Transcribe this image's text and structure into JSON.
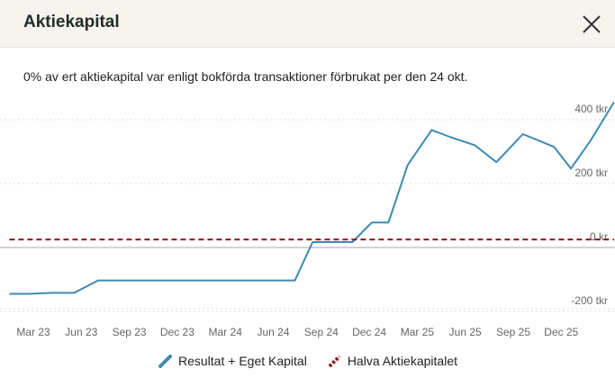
{
  "dialog": {
    "title": "Aktiekapital",
    "description": "0% av ert aktiekapital var enligt bokförda transaktioner förbrukat per den 24 okt."
  },
  "colors": {
    "series_line": "#3e8ab3",
    "reference_line": "#8b1a1a",
    "grid": "#dddddd",
    "zero_axis": "#aaaaaa",
    "header_bg": "#f7f4ef"
  },
  "icons": {
    "close": "close-icon"
  },
  "chart_data": {
    "type": "line",
    "title": "",
    "xlabel": "",
    "ylabel": "",
    "x_ticks": [
      "Mar 23",
      "Jun 23",
      "Sep 23",
      "Dec 23",
      "Mar 24",
      "Jun 24",
      "Sep 24",
      "Dec 24",
      "Mar 25",
      "Jun 25",
      "Sep 25",
      "Dec 25"
    ],
    "y_ticks": [
      {
        "value": 400,
        "label": "400 tkr"
      },
      {
        "value": 200,
        "label": "200 tkr"
      },
      {
        "value": 0,
        "label": "0 kr"
      },
      {
        "value": -200,
        "label": "-200 tkr"
      }
    ],
    "ylim": [
      -205,
      460
    ],
    "xlim": [
      -0.5,
      12.3
    ],
    "legend_position": "bottom",
    "series": [
      {
        "name": "Resultat + Eget Kapital",
        "style": "solid",
        "x": [
          -0.5,
          -0.1,
          0.4,
          0.85,
          1.35,
          2,
          3,
          4,
          5,
          5.45,
          5.82,
          6.3,
          6.65,
          7.05,
          7.4,
          7.8,
          8.3,
          8.7,
          9.2,
          9.65,
          10.2,
          10.85,
          11.2,
          11.6,
          12.1
        ],
        "y": [
          -145,
          -145,
          -142,
          -142,
          -103,
          -103,
          -103,
          -103,
          -103,
          -103,
          17,
          17,
          17,
          78,
          78,
          258,
          368,
          345,
          320,
          267,
          355,
          315,
          247,
          332,
          455
        ]
      },
      {
        "name": "Halva Aktiekapitalet",
        "style": "dashed",
        "x": [
          -0.5,
          12.1
        ],
        "y": [
          25,
          25
        ]
      }
    ]
  }
}
